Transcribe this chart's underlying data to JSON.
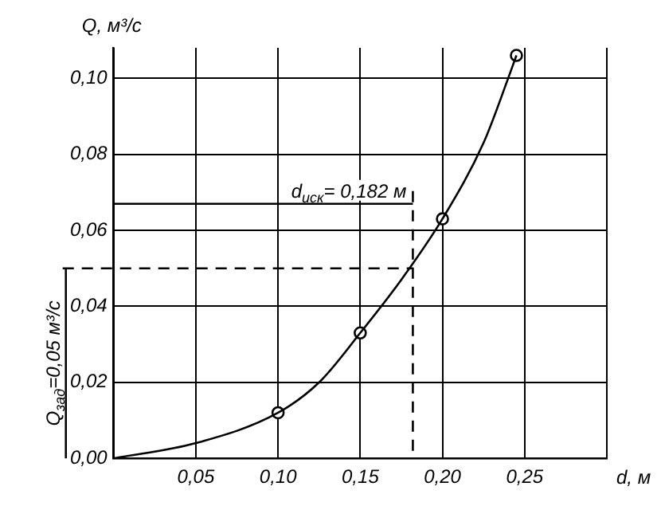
{
  "chart_data": {
    "type": "line",
    "xlabel": "d, м",
    "ylabel": "Q, м³/с",
    "xlim": [
      0,
      0.3
    ],
    "ylim": [
      0,
      0.108
    ],
    "xticks": [
      {
        "value": 0,
        "label": null
      },
      {
        "value": 0.05,
        "label": "0,05"
      },
      {
        "value": 0.1,
        "label": "0,10"
      },
      {
        "value": 0.15,
        "label": "0,15"
      },
      {
        "value": 0.2,
        "label": "0,20"
      },
      {
        "value": 0.25,
        "label": "0,25"
      },
      {
        "value": 0.3,
        "label": null
      }
    ],
    "yticks": [
      {
        "value": 0,
        "label": "0,00"
      },
      {
        "value": 0.02,
        "label": "0,02"
      },
      {
        "value": 0.04,
        "label": "0,04"
      },
      {
        "value": 0.06,
        "label": "0,06"
      },
      {
        "value": 0.08,
        "label": "0,08"
      },
      {
        "value": 0.1,
        "label": "0,10"
      }
    ],
    "grid": true,
    "legend": false,
    "series": [
      {
        "type": "line",
        "color": "#000000",
        "marker": "none",
        "x": [
          0,
          0.05,
          0.1,
          0.125,
          0.15,
          0.175,
          0.2,
          0.225,
          0.24,
          0.245
        ],
        "values": [
          0,
          0.004,
          0.012,
          0.02,
          0.033,
          0.047,
          0.063,
          0.083,
          0.1,
          0.106
        ]
      },
      {
        "type": "scatter",
        "color": "#000000",
        "marker": "circle",
        "x": [
          0.1,
          0.15,
          0.2,
          0.245
        ],
        "values": [
          0.012,
          0.033,
          0.063,
          0.106
        ]
      }
    ],
    "ref_lines": [
      {
        "axis": "y",
        "value": 0.05,
        "label": "Q$_{зад}$=0,05 м³/с",
        "line_style": "dashed",
        "color": "#000000"
      },
      {
        "axis": "x",
        "value": 0.182,
        "label": "d$_{иск}$= 0,182 м",
        "line_style": "dashed",
        "color": "#000000"
      }
    ]
  }
}
